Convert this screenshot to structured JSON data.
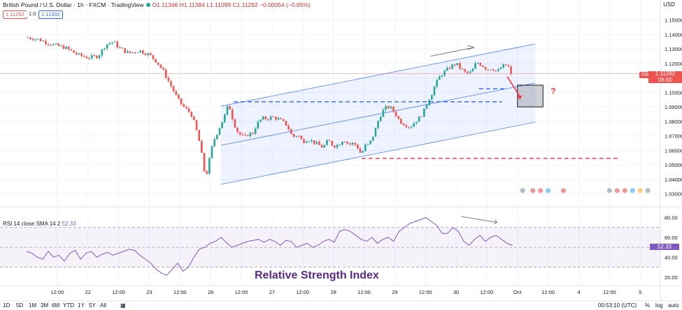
{
  "header": {
    "title": "British Pound / U.S. Dollar · 1h · FXCM · TradingView",
    "ohlc": "O1.11346 H1.11384 L1.11099 C1.11292 −0.00054 (−0.05%)",
    "bid": "1.11292",
    "spread": "1.0",
    "ask": "1.11302",
    "currency": "USD"
  },
  "price_tag": {
    "symbol": "GBPUSD",
    "price": "1.11292",
    "countdown": "06:50"
  },
  "annotations": {
    "question": "?"
  },
  "chart_data": {
    "type": "candlestick",
    "ylim": [
      1.025,
      1.158
    ],
    "y_ticks": [
      "1.15000",
      "1.14000",
      "1.13000",
      "1.12000",
      "1.11000",
      "1.10000",
      "1.09000",
      "1.08000",
      "1.07000",
      "1.06000",
      "1.05000",
      "1.04000",
      "1.03000"
    ],
    "y_tick_values": [
      1.15,
      1.14,
      1.13,
      1.12,
      1.11,
      1.1,
      1.09,
      1.08,
      1.07,
      1.06,
      1.05,
      1.04,
      1.03
    ],
    "x_ticks": [
      "12:00",
      "22",
      "12:00",
      "23",
      "12:00",
      "26",
      "12:00",
      "27",
      "12:00",
      "28",
      "12:00",
      "29",
      "12:00",
      "30",
      "12:00",
      "Oct",
      "12:00",
      "4",
      "12:00",
      "5"
    ],
    "x_tick_hours": [
      12,
      24,
      36,
      48,
      60,
      72,
      84,
      96,
      108,
      120,
      132,
      144,
      156,
      168,
      180,
      192,
      204,
      216,
      228,
      240
    ],
    "last_price": 1.11292,
    "path_hours": [
      0,
      5,
      10,
      15,
      20,
      24,
      28,
      31,
      34,
      36,
      40,
      44,
      48,
      51,
      53,
      54,
      56,
      57,
      58,
      60,
      62,
      64,
      65,
      66,
      67,
      68,
      69,
      70,
      71,
      72,
      73,
      74,
      76,
      78,
      79,
      80,
      81,
      82,
      84,
      86,
      87,
      88,
      90,
      92,
      94,
      96,
      98,
      100,
      102,
      104,
      106,
      108,
      110,
      112,
      114,
      116,
      118,
      120,
      122,
      124,
      126,
      128,
      130,
      131,
      132,
      134,
      136,
      138,
      140,
      142,
      144,
      146,
      148,
      150,
      152,
      154,
      156,
      157,
      158,
      160,
      162,
      164,
      166,
      168,
      170,
      172,
      174,
      176,
      178,
      180,
      182,
      184,
      186,
      188,
      190
    ],
    "path_prices": [
      1.138,
      1.1365,
      1.133,
      1.131,
      1.126,
      1.124,
      1.125,
      1.133,
      1.135,
      1.131,
      1.127,
      1.129,
      1.126,
      1.121,
      1.116,
      1.113,
      1.106,
      1.103,
      1.099,
      1.093,
      1.089,
      1.086,
      1.083,
      1.076,
      1.071,
      1.062,
      1.052,
      1.04,
      1.049,
      1.058,
      1.066,
      1.07,
      1.078,
      1.086,
      1.093,
      1.085,
      1.08,
      1.074,
      1.07,
      1.069,
      1.073,
      1.07,
      1.078,
      1.082,
      1.082,
      1.083,
      1.082,
      1.08,
      1.077,
      1.069,
      1.071,
      1.066,
      1.068,
      1.066,
      1.064,
      1.062,
      1.067,
      1.063,
      1.064,
      1.068,
      1.064,
      1.065,
      1.061,
      1.056,
      1.063,
      1.064,
      1.072,
      1.083,
      1.089,
      1.09,
      1.086,
      1.08,
      1.078,
      1.076,
      1.08,
      1.083,
      1.089,
      1.095,
      1.097,
      1.106,
      1.112,
      1.115,
      1.118,
      1.12,
      1.116,
      1.113,
      1.114,
      1.121,
      1.119,
      1.116,
      1.117,
      1.114,
      1.118,
      1.119,
      1.1129
    ],
    "channel": {
      "upper": [
        [
          76,
          1.0905
        ],
        [
          199,
          1.1335
        ]
      ],
      "middle": [
        [
          76,
          1.0635
        ],
        [
          199,
          1.1065
        ]
      ],
      "lower": [
        [
          76,
          1.0365
        ],
        [
          199,
          1.0795
        ]
      ]
    },
    "levels": [
      {
        "price": 1.0935,
        "from": 81,
        "to": 186,
        "color": "#2962ff"
      },
      {
        "price": 1.1025,
        "from": 177,
        "to": 187,
        "color": "#2962ff"
      },
      {
        "price": 1.0545,
        "from": 131,
        "to": 232,
        "color": "#f23645"
      }
    ],
    "rsi": {
      "label": "RSI 14 close SMA 14 2",
      "value": "52.33",
      "ylim": [
        15,
        86
      ],
      "y_ticks": [
        "80.00",
        "60.00",
        "40.00",
        "20.00"
      ],
      "y_tick_values": [
        80,
        60,
        40,
        20
      ],
      "bands": [
        70,
        50,
        30
      ],
      "values": [
        46,
        44,
        40,
        38,
        46,
        40,
        42,
        36,
        44,
        47,
        38,
        44,
        46,
        40,
        43,
        45,
        42,
        44,
        46,
        48,
        47,
        42,
        38,
        34,
        28,
        24,
        22,
        28,
        34,
        26,
        30,
        40,
        48,
        50,
        54,
        56,
        60,
        55,
        50,
        52,
        54,
        56,
        57,
        58,
        55,
        58,
        56,
        52,
        57,
        56,
        50,
        52,
        54,
        50,
        52,
        56,
        58,
        55,
        66,
        68,
        66,
        62,
        58,
        56,
        60,
        54,
        58,
        60,
        56,
        66,
        70,
        74,
        76,
        78,
        80,
        76,
        72,
        64,
        64,
        70,
        66,
        56,
        52,
        58,
        62,
        56,
        60,
        62,
        58,
        54,
        52
      ]
    }
  },
  "caption": "Relative Strength Index",
  "bottom": {
    "timeframes": [
      "1D",
      "5D",
      "1M",
      "3M",
      "6M",
      "YTD",
      "1Y",
      "5Y",
      "All"
    ],
    "clock": "00:53:10 (UTC)",
    "options": [
      "%",
      "log",
      "auto"
    ]
  },
  "colors": {
    "up": "#26a69a",
    "down": "#ef5350",
    "channel": "#2962ff",
    "rsi": "#7e57c2",
    "price_line": "#ef5350"
  }
}
